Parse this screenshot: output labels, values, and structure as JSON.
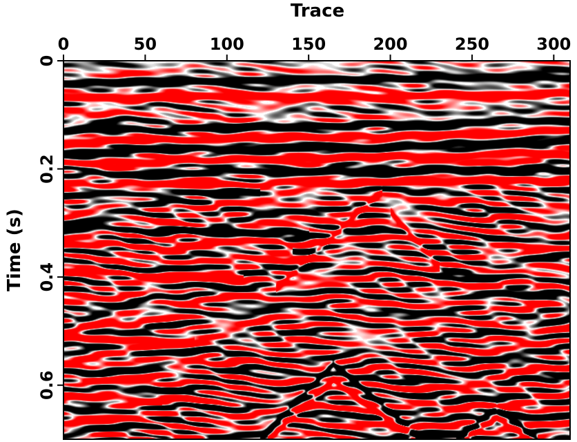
{
  "chart_data": {
    "type": "heatmap",
    "subtype": "seismic-section",
    "title": "",
    "xlabel": "Trace",
    "ylabel": "Time (s)",
    "x_axis_position": "top",
    "xlim": [
      0,
      310
    ],
    "ylim": [
      0,
      0.7
    ],
    "y_inverted": true,
    "grid": false,
    "legend": "none",
    "x_ticks": [
      0,
      50,
      100,
      150,
      200,
      250,
      300
    ],
    "x_tick_labels": [
      "0",
      "50",
      "100",
      "150",
      "200",
      "250",
      "300"
    ],
    "y_ticks": [
      0,
      0.2,
      0.4,
      0.6
    ],
    "y_tick_labels": [
      "0",
      "0.2",
      "0.4",
      "0.6"
    ],
    "colormap": {
      "negative": "#000000",
      "zero": "#ffffff",
      "positive": "#ff0000"
    },
    "reflectors": [
      {
        "x": [
          0,
          310
        ],
        "y": [
          0.04,
          0.03
        ],
        "polarity": "black",
        "strength": 1.0
      },
      {
        "x": [
          0,
          310
        ],
        "y": [
          0.07,
          0.06
        ],
        "polarity": "red",
        "strength": 1.0
      },
      {
        "x": [
          0,
          310
        ],
        "y": [
          0.13,
          0.11
        ],
        "polarity": "black",
        "strength": 1.0
      },
      {
        "x": [
          0,
          310
        ],
        "y": [
          0.15,
          0.13
        ],
        "polarity": "red",
        "strength": 1.0
      },
      {
        "x": [
          0,
          310
        ],
        "y": [
          0.17,
          0.15
        ],
        "polarity": "black",
        "strength": 1.0
      },
      {
        "x": [
          0,
          310
        ],
        "y": [
          0.19,
          0.17
        ],
        "polarity": "red",
        "strength": 1.0
      },
      {
        "x": [
          0,
          310
        ],
        "y": [
          0.21,
          0.2
        ],
        "polarity": "black",
        "strength": 1.0
      },
      {
        "x": [
          0,
          310
        ],
        "y": [
          0.23,
          0.22
        ],
        "polarity": "red",
        "strength": 0.9
      },
      {
        "x": [
          0,
          120
        ],
        "y": [
          0.25,
          0.24
        ],
        "polarity": "black",
        "strength": 0.9
      },
      {
        "x": [
          0,
          150
        ],
        "y": [
          0.31,
          0.32
        ],
        "polarity": "black",
        "strength": 0.8
      },
      {
        "x": [
          0,
          140
        ],
        "y": [
          0.34,
          0.35
        ],
        "polarity": "red",
        "strength": 0.8
      },
      {
        "x": [
          0,
          110
        ],
        "y": [
          0.39,
          0.4
        ],
        "polarity": "red",
        "strength": 0.8
      },
      {
        "x": [
          0,
          80
        ],
        "y": [
          0.51,
          0.52
        ],
        "polarity": "red",
        "strength": 0.8
      },
      {
        "x": [
          0,
          60
        ],
        "y": [
          0.62,
          0.63
        ],
        "polarity": "red",
        "strength": 0.7
      },
      {
        "x": [
          120,
          165,
          220
        ],
        "y": [
          0.7,
          0.56,
          0.7
        ],
        "polarity": "black",
        "strength": 1.0
      },
      {
        "x": [
          125,
          165,
          215
        ],
        "y": [
          0.7,
          0.59,
          0.7
        ],
        "polarity": "red",
        "strength": 1.0
      },
      {
        "x": [
          240,
          265,
          290
        ],
        "y": [
          0.7,
          0.64,
          0.7
        ],
        "polarity": "black",
        "strength": 1.0
      },
      {
        "x": [
          245,
          265,
          285
        ],
        "y": [
          0.7,
          0.66,
          0.7
        ],
        "polarity": "red",
        "strength": 1.0
      },
      {
        "x": [
          130,
          195
        ],
        "y": [
          0.42,
          0.24
        ],
        "polarity": "red",
        "strength": 0.8
      },
      {
        "x": [
          200,
          230
        ],
        "y": [
          0.28,
          0.38
        ],
        "polarity": "red",
        "strength": 0.7
      },
      {
        "x": [
          230,
          310
        ],
        "y": [
          0.38,
          0.45
        ],
        "polarity": "black",
        "strength": 0.7
      }
    ],
    "background_noise": {
      "amplitude": 0.7,
      "seed": 7
    }
  }
}
